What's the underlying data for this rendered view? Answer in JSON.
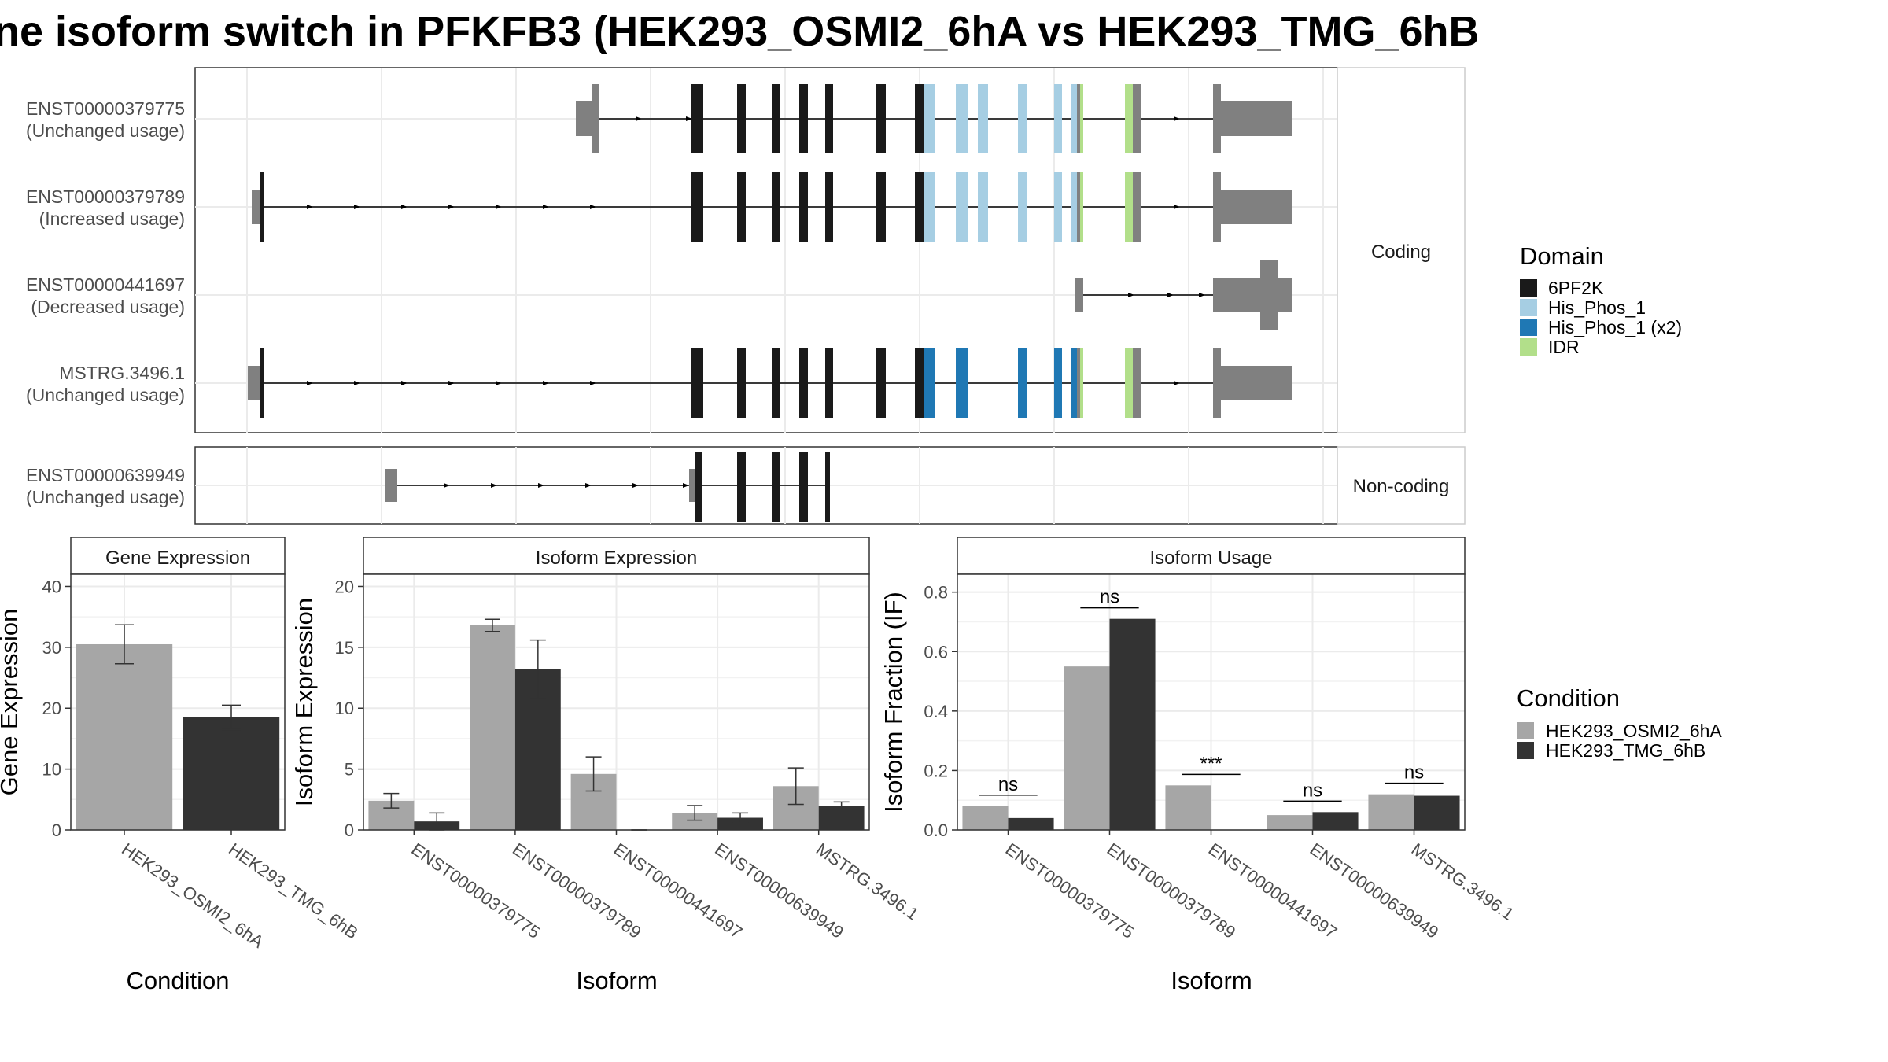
{
  "title": "ne isoform switch in PFKFB3 (HEK293_OSMI2_6hA vs HEK293_TMG_6hB",
  "colors": {
    "domain_6PF2K": "#1a1a1a",
    "domain_his_phos_1": "#a6cee3",
    "domain_his_phos_1_x2": "#1f78b4",
    "domain_idr": "#b2df8a",
    "exon": "#808080",
    "condition_a": "#a6a6a6",
    "condition_b": "#333333"
  },
  "transcripts": {
    "strip_coding": "Coding",
    "strip_noncoding": "Non-coding",
    "coding": [
      {
        "id": "ENST00000379775",
        "usage": "(Unchanged usage)"
      },
      {
        "id": "ENST00000379789",
        "usage": "(Increased usage)"
      },
      {
        "id": "ENST00000441697",
        "usage": "(Decreased usage)"
      },
      {
        "id": "MSTRG.3496.1",
        "usage": "(Unchanged usage)"
      }
    ],
    "noncoding": [
      {
        "id": "ENST00000639949",
        "usage": "(Unchanged usage)"
      }
    ]
  },
  "legend_domain": {
    "title": "Domain",
    "items": [
      {
        "label": "6PF2K",
        "color": "#1a1a1a"
      },
      {
        "label": "His_Phos_1",
        "color": "#a6cee3"
      },
      {
        "label": "His_Phos_1 (x2)",
        "color": "#1f78b4"
      },
      {
        "label": "IDR",
        "color": "#b2df8a"
      }
    ]
  },
  "legend_condition": {
    "title": "Condition",
    "items": [
      {
        "label": "HEK293_OSMI2_6hA",
        "color": "#a6a6a6"
      },
      {
        "label": "HEK293_TMG_6hB",
        "color": "#333333"
      }
    ]
  },
  "chart_data": [
    {
      "type": "bar",
      "title": "Gene Expression",
      "xlabel": "Condition",
      "ylabel": "Gene Expression",
      "ylim": [
        0,
        42
      ],
      "yticks": [
        0,
        10,
        20,
        30,
        40
      ],
      "categories": [
        "HEK293_OSMI2_6hA",
        "HEK293_TMG_6hB"
      ],
      "values": [
        30.5,
        18.5
      ],
      "errors": [
        3.2,
        2.0
      ]
    },
    {
      "type": "bar",
      "title": "Isoform Expression",
      "xlabel": "Isoform",
      "ylabel": "Isoform Expression",
      "ylim": [
        0,
        21
      ],
      "yticks": [
        0,
        5,
        10,
        15,
        20
      ],
      "categories": [
        "ENST00000379775",
        "ENST00000379789",
        "ENST00000441697",
        "ENST00000639949",
        "MSTRG.3496.1"
      ],
      "series": [
        {
          "name": "HEK293_OSMI2_6hA",
          "values": [
            2.4,
            16.8,
            4.6,
            1.4,
            3.6
          ],
          "errors": [
            0.6,
            0.5,
            1.4,
            0.6,
            1.5
          ]
        },
        {
          "name": "HEK293_TMG_6hB",
          "values": [
            0.7,
            13.2,
            0.0,
            1.0,
            2.0
          ],
          "errors": [
            0.7,
            2.4,
            0.0,
            0.4,
            0.3
          ]
        }
      ]
    },
    {
      "type": "bar",
      "title": "Isoform Usage",
      "xlabel": "Isoform",
      "ylabel": "Isoform Fraction (IF)",
      "ylim": [
        0,
        0.86
      ],
      "yticks": [
        0.0,
        0.2,
        0.4,
        0.6,
        0.8
      ],
      "ytick_labels": [
        "0.0",
        "0.2",
        "0.4",
        "0.6",
        "0.8"
      ],
      "categories": [
        "ENST00000379775",
        "ENST00000379789",
        "ENST00000441697",
        "ENST00000639949",
        "MSTRG.3496.1"
      ],
      "series": [
        {
          "name": "HEK293_OSMI2_6hA",
          "values": [
            0.08,
            0.55,
            0.15,
            0.05,
            0.12
          ]
        },
        {
          "name": "HEK293_TMG_6hB",
          "values": [
            0.04,
            0.71,
            0.0,
            0.06,
            0.115
          ]
        }
      ],
      "significance": [
        "ns",
        "ns",
        "***",
        "ns",
        "ns"
      ]
    }
  ]
}
